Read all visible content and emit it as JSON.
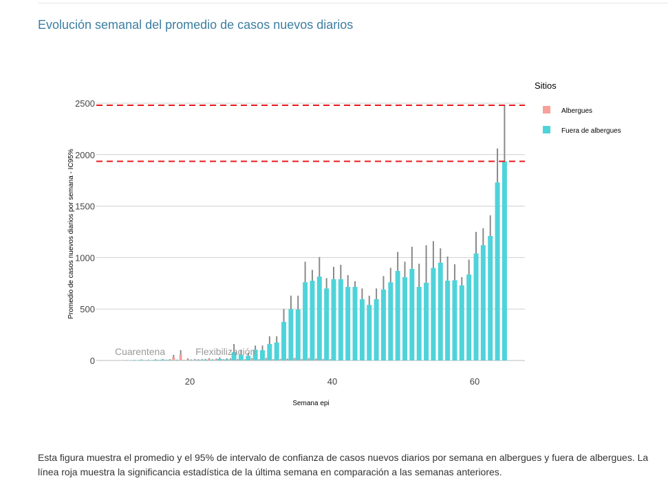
{
  "title": "Evolución semanal del promedio de casos nuevos diarios",
  "caption": "Esta figura muestra el promedio y el 95% de intervalo de confianza de casos nuevos diarios por semana en albergues y fuera de albergues. La línea roja muestra la significancia estadística de la última semana en comparación a las semanas anteriores.",
  "chart_data": {
    "type": "bar",
    "xlabel": "Semana epi",
    "ylabel": "Promedio de casos nuevos diarios por semana - IC95%",
    "ylim": [
      0,
      2500
    ],
    "xlim": [
      7,
      67
    ],
    "yticks": [
      "0",
      "500",
      "1000",
      "1500",
      "2000",
      "2500"
    ],
    "ytick_values": [
      0,
      500,
      1000,
      1500,
      2000,
      2500
    ],
    "xticks": [
      "20",
      "40",
      "60"
    ],
    "xtick_values": [
      20,
      40,
      60
    ],
    "legend_title": "Sitios",
    "legend_position": "right",
    "colors": {
      "Albergues": "#f8a09a",
      "Fuera de albergues": "#4fd3da",
      "ci": "#888888",
      "reference": "#e8171b"
    },
    "reference_lines": [
      2480,
      1935
    ],
    "annotations": [
      {
        "text": "Cuarentena",
        "x": 13
      },
      {
        "text": "Flexibilización",
        "x": 25
      }
    ],
    "series": [
      {
        "name": "Albergues",
        "x": [
          11,
          12,
          13,
          14,
          15,
          16,
          17,
          18,
          19,
          20,
          21,
          22,
          23,
          24,
          25,
          26,
          27,
          28,
          29,
          30,
          31,
          32,
          33,
          34,
          35,
          36,
          37,
          38,
          39,
          40
        ],
        "values": [
          1,
          1,
          1,
          2,
          2,
          3,
          4,
          30,
          55,
          10,
          8,
          8,
          12,
          10,
          6,
          10,
          8,
          6,
          12,
          6,
          15,
          6,
          8,
          10,
          15,
          8,
          12,
          10,
          8,
          6
        ],
        "upper": [
          2,
          2,
          3,
          4,
          4,
          6,
          8,
          55,
          100,
          20,
          15,
          15,
          22,
          18,
          12,
          20,
          15,
          12,
          22,
          12,
          25,
          12,
          15,
          18,
          25,
          15,
          22,
          18,
          15,
          12
        ]
      },
      {
        "name": "Fuera de albergues",
        "x": [
          11,
          12,
          13,
          14,
          15,
          16,
          17,
          18,
          19,
          20,
          21,
          22,
          23,
          24,
          25,
          26,
          27,
          28,
          29,
          30,
          31,
          32,
          33,
          34,
          35,
          36,
          37,
          38,
          39,
          40,
          41,
          42,
          43,
          44,
          45,
          46,
          47,
          48,
          49,
          50,
          51,
          52,
          53,
          54,
          55,
          56,
          57,
          58,
          59,
          60,
          61,
          62,
          63,
          64
        ],
        "values": [
          2,
          3,
          5,
          4,
          6,
          8,
          6,
          4,
          3,
          5,
          6,
          8,
          6,
          15,
          10,
          80,
          55,
          45,
          105,
          100,
          160,
          175,
          375,
          500,
          495,
          760,
          775,
          815,
          700,
          790,
          790,
          715,
          715,
          595,
          540,
          595,
          690,
          760,
          870,
          810,
          890,
          715,
          755,
          900,
          950,
          775,
          780,
          730,
          835,
          1040,
          1120,
          1210,
          1730,
          1935
        ],
        "upper": [
          4,
          6,
          10,
          8,
          12,
          15,
          12,
          8,
          6,
          10,
          12,
          15,
          12,
          30,
          20,
          160,
          105,
          75,
          145,
          145,
          235,
          235,
          500,
          630,
          630,
          960,
          880,
          1005,
          800,
          910,
          930,
          830,
          770,
          700,
          630,
          700,
          820,
          900,
          1055,
          960,
          1105,
          940,
          1120,
          1160,
          1090,
          1010,
          935,
          810,
          980,
          1250,
          1285,
          1410,
          2060,
          2480
        ]
      }
    ]
  }
}
